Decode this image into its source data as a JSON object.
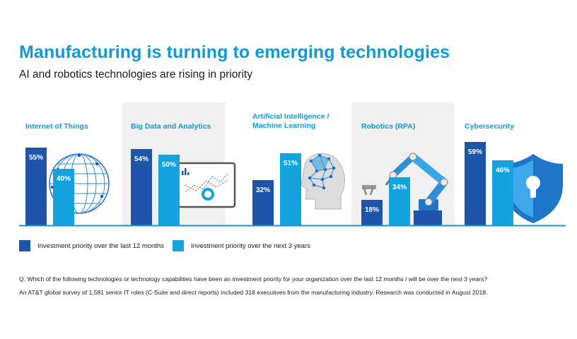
{
  "header": {
    "title": "Manufacturing is turning to emerging technologies",
    "subtitle": "AI and robotics technologies are rising in priority"
  },
  "colors": {
    "series_last12": "#1f55a8",
    "series_next3": "#15a3e0",
    "title": "#0d9ad8",
    "panel_bg": "#f0f0f0",
    "baseline": "#0d9ad8"
  },
  "chart_data": {
    "type": "bar",
    "categories": [
      [
        "Internet of Things"
      ],
      [
        "Big Data and Analytics"
      ],
      [
        "Artificial Intelligence /",
        "Machine Learning"
      ],
      [
        "Robotics (RPA)"
      ],
      [
        "Cybersecurity"
      ]
    ],
    "series": [
      {
        "name": "Investment priority over the last 12 months",
        "values": [
          55,
          54,
          32,
          18,
          59
        ],
        "labels": [
          "55%",
          "54%",
          "32%",
          "18%",
          "59%"
        ]
      },
      {
        "name": "Investment priority over the next 3 years",
        "values": [
          40,
          50,
          51,
          34,
          46
        ],
        "labels": [
          "40%",
          "50%",
          "51%",
          "34%",
          "46%"
        ]
      }
    ],
    "icons": [
      "globe-network-icon",
      "analytics-screen-icon",
      "ai-head-icon",
      "robot-arm-icon",
      "shield-lock-icon"
    ],
    "shaded_categories": [
      1,
      3
    ],
    "legend_position": "bottom-left",
    "grid": false,
    "ylim": [
      0,
      65
    ]
  },
  "legend": {
    "last12_label": "Investment priority over the last 12 months",
    "next3_label": "Investment priority over the next 3 years"
  },
  "notes": {
    "question": "Q. Which of the following technologies or technology capabilities have been an investment priority for your organization over the last 12 months / will be over the next 3 years?",
    "source": "An AT&T global survey of 1,581 senior IT roles (C-Suite and direct reports) included 318 executives from the manufacturing industry. Research was conducted in August 2018."
  }
}
